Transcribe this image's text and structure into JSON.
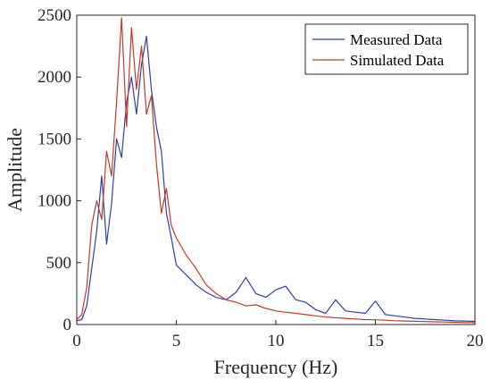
{
  "chart_data": {
    "type": "line",
    "xlabel": "Frequency (Hz)",
    "ylabel": "Amplitude",
    "xlim": [
      0,
      20
    ],
    "ylim": [
      0,
      2500
    ],
    "xticks": [
      0,
      5,
      10,
      15,
      20
    ],
    "yticks": [
      0,
      500,
      1000,
      1500,
      2000,
      2500
    ],
    "grid": false,
    "legend_position": "top-right",
    "series": [
      {
        "name": "Measured Data",
        "color": "#2e3f9e",
        "x": [
          0,
          0.25,
          0.5,
          0.75,
          1.0,
          1.25,
          1.5,
          1.75,
          2.0,
          2.25,
          2.5,
          2.75,
          3.0,
          3.25,
          3.5,
          3.75,
          4.0,
          4.25,
          4.5,
          4.75,
          5.0,
          5.5,
          6.0,
          6.5,
          7.0,
          7.5,
          8.0,
          8.5,
          9.0,
          9.5,
          10.0,
          10.5,
          11.0,
          11.5,
          12.0,
          12.5,
          13.0,
          13.5,
          14.0,
          14.5,
          15.0,
          15.5,
          16.0,
          16.5,
          17.0,
          17.5,
          18.0,
          18.5,
          19.0,
          19.5,
          20.0
        ],
        "values": [
          30,
          40,
          150,
          450,
          750,
          1200,
          650,
          980,
          1500,
          1350,
          1800,
          2000,
          1700,
          2100,
          2330,
          1900,
          1600,
          1400,
          900,
          700,
          480,
          400,
          320,
          260,
          220,
          200,
          260,
          380,
          250,
          220,
          280,
          310,
          200,
          180,
          120,
          90,
          200,
          110,
          100,
          90,
          190,
          80,
          70,
          60,
          50,
          45,
          40,
          35,
          30,
          28,
          25
        ]
      },
      {
        "name": "Simulated Data",
        "color": "#c0392b",
        "x": [
          0,
          0.25,
          0.5,
          0.75,
          1.0,
          1.25,
          1.5,
          1.75,
          2.0,
          2.25,
          2.5,
          2.75,
          3.0,
          3.25,
          3.5,
          3.75,
          4.0,
          4.25,
          4.5,
          4.75,
          5.0,
          5.5,
          6.0,
          6.5,
          7.0,
          7.5,
          8.0,
          8.5,
          9.0,
          9.5,
          10.0,
          10.5,
          11.0,
          11.5,
          12.0,
          12.5,
          13.0,
          13.5,
          14.0,
          14.5,
          15.0,
          15.5,
          16.0,
          16.5,
          17.0,
          17.5,
          18.0,
          18.5,
          19.0,
          19.5,
          20.0
        ],
        "values": [
          40,
          80,
          300,
          800,
          1000,
          850,
          1400,
          1200,
          1800,
          2480,
          1600,
          2400,
          1900,
          2250,
          1700,
          1850,
          1300,
          900,
          1100,
          800,
          700,
          560,
          450,
          320,
          250,
          200,
          180,
          150,
          160,
          130,
          110,
          100,
          90,
          80,
          70,
          60,
          55,
          50,
          45,
          40,
          38,
          35,
          30,
          28,
          26,
          24,
          22,
          20,
          18,
          16,
          15
        ]
      }
    ]
  }
}
